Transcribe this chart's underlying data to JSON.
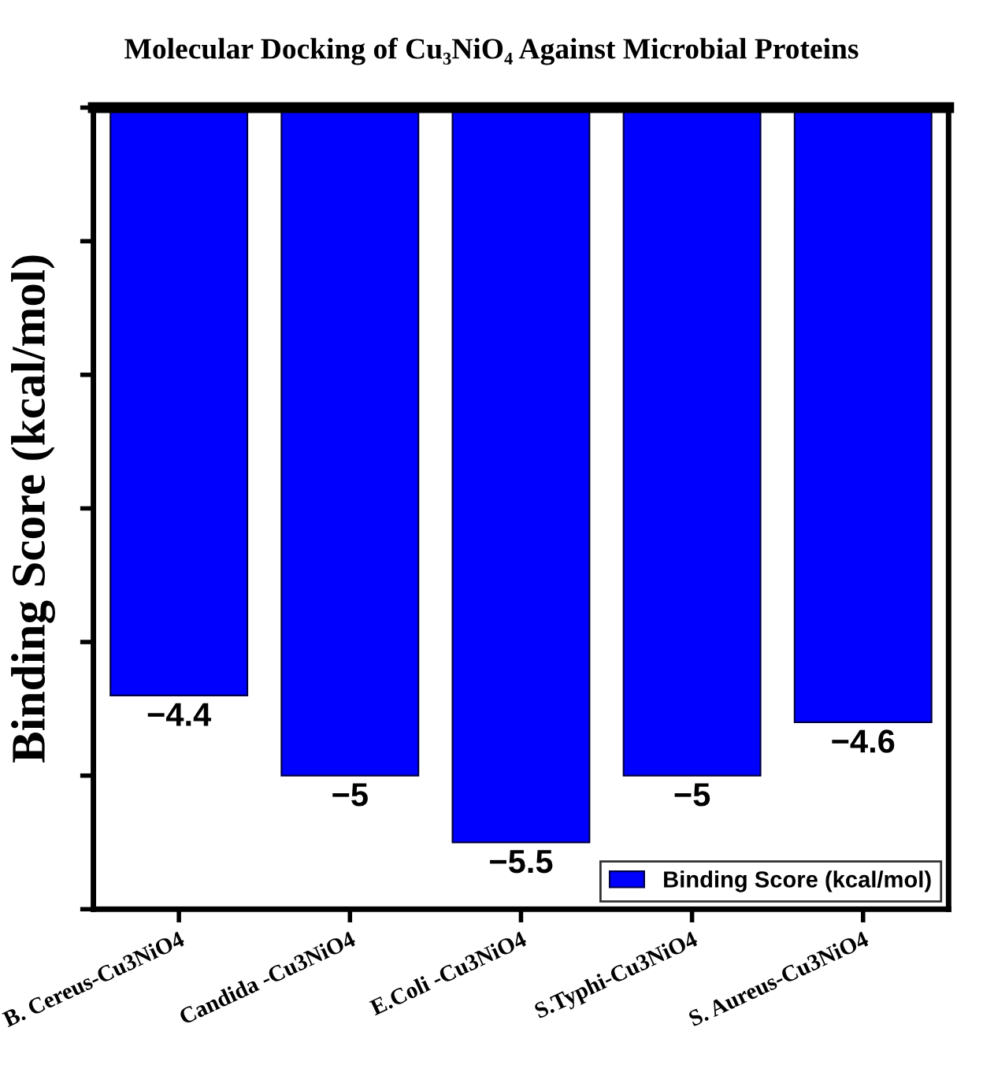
{
  "chart_data": {
    "type": "bar",
    "title": "Molecular Docking of Cu₃NiO₄ Against Microbial Proteins",
    "ylabel": "Binding Score (kcal/mol)",
    "categories": [
      "B. Cereus-Cu3NiO4",
      "Candida -Cu3NiO4",
      "E.Coli -Cu3NiO4",
      "S.Typhi-Cu3NiO4",
      "S. Aureus-Cu3NiO4"
    ],
    "series": [
      {
        "name": "Binding Score (kcal/mol)",
        "color": "#0000ff",
        "values": [
          -4.4,
          -5,
          -5.5,
          -5,
          -4.6
        ]
      }
    ],
    "ylim": [
      -6,
      0
    ],
    "yticks": [
      {
        "value": -6,
        "label": null
      },
      {
        "value": -5,
        "label": null
      },
      {
        "value": -4,
        "label": null
      },
      {
        "value": -3,
        "label": null
      },
      {
        "value": -2,
        "label": null
      },
      {
        "value": -1,
        "label": null
      },
      {
        "value": 0,
        "label": null
      }
    ],
    "tick_labels": "x",
    "data_labels": true,
    "legend": "bottom right",
    "grid": false
  }
}
